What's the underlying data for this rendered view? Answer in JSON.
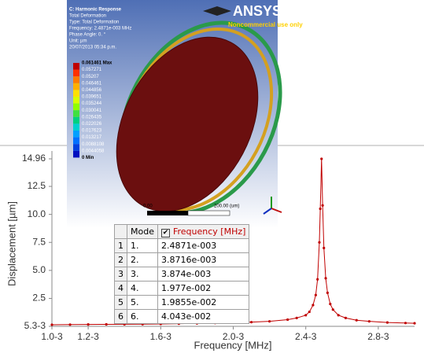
{
  "chart_data": {
    "type": "line",
    "x_label": "Frequency [MHz]",
    "y_label": "Displacement [µm]",
    "series": [
      {
        "color": "#c00000",
        "x": [
          1.0,
          1.1,
          1.2,
          1.3,
          1.4,
          1.5,
          1.6,
          1.7,
          1.8,
          1.9,
          2.0,
          2.1,
          2.2,
          2.3,
          2.35,
          2.4,
          2.42,
          2.44,
          2.455,
          2.465,
          2.475,
          2.48,
          2.487,
          2.493,
          2.5,
          2.51,
          2.52,
          2.535,
          2.55,
          2.58,
          2.62,
          2.68,
          2.75,
          2.85,
          2.95,
          3.0
        ],
        "values": [
          0.15,
          0.16,
          0.17,
          0.18,
          0.19,
          0.2,
          0.22,
          0.24,
          0.27,
          0.3,
          0.33,
          0.38,
          0.45,
          0.6,
          0.75,
          1.0,
          1.3,
          1.9,
          2.8,
          4.2,
          7.5,
          10.5,
          14.96,
          10.8,
          7.0,
          4.3,
          3.0,
          2.0,
          1.5,
          1.0,
          0.75,
          0.55,
          0.45,
          0.35,
          0.3,
          0.28
        ]
      }
    ],
    "xlim": [
      1.0,
      3.0
    ],
    "xticks": [
      {
        "value": 1.0,
        "label": "1.0-3"
      },
      {
        "value": 1.2,
        "label": "1.2-3"
      },
      {
        "value": 1.6,
        "label": "1.6-3"
      },
      {
        "value": 2.0,
        "label": "2.0-3"
      },
      {
        "value": 2.4,
        "label": "2.4-3"
      },
      {
        "value": 2.8,
        "label": "2.8-3"
      }
    ],
    "ylim": [
      0.0053,
      14.96
    ],
    "yticks": [
      {
        "value": 0.0053,
        "label": "5.3-3"
      },
      2.5,
      {
        "value": 5.0,
        "label": "5.0"
      },
      7.5,
      {
        "value": 10.0,
        "label": "10.0"
      },
      12.5,
      14.96
    ]
  },
  "inset": {
    "header": [
      "C: Harmonic Response",
      "Total Deformation",
      "Type: Total Deformation",
      "Frequency: 2.4871e-003 MHz",
      "Phase Angle: 0. °",
      "Unit: µm",
      "20/07/2013 05:34 p.m."
    ],
    "legend": [
      "0.061461 Max",
      "0.057271",
      "0.05207",
      "0.046461",
      "0.044856",
      "0.039651",
      "0.035244",
      "0.030041",
      "0.026435",
      "0.022026",
      "0.017623",
      "0.013217",
      "0.0088108",
      "0.0044058",
      "0 Min"
    ],
    "logo": "ANSYS",
    "notice": "Noncommercial use only",
    "scale": [
      "0.00",
      "200.00 (um)"
    ]
  },
  "table": {
    "header": [
      "Mode",
      "Frequency [MHz]"
    ],
    "rows": [
      [
        "1",
        "1.",
        "2.4871e-003"
      ],
      [
        "2",
        "2.",
        "3.8716e-003"
      ],
      [
        "3",
        "3.",
        "3.874e-003"
      ],
      [
        "4",
        "4.",
        "1.977e-002"
      ],
      [
        "5",
        "5.",
        "1.9855e-002"
      ],
      [
        "6",
        "6.",
        "4.043e-002"
      ]
    ]
  }
}
